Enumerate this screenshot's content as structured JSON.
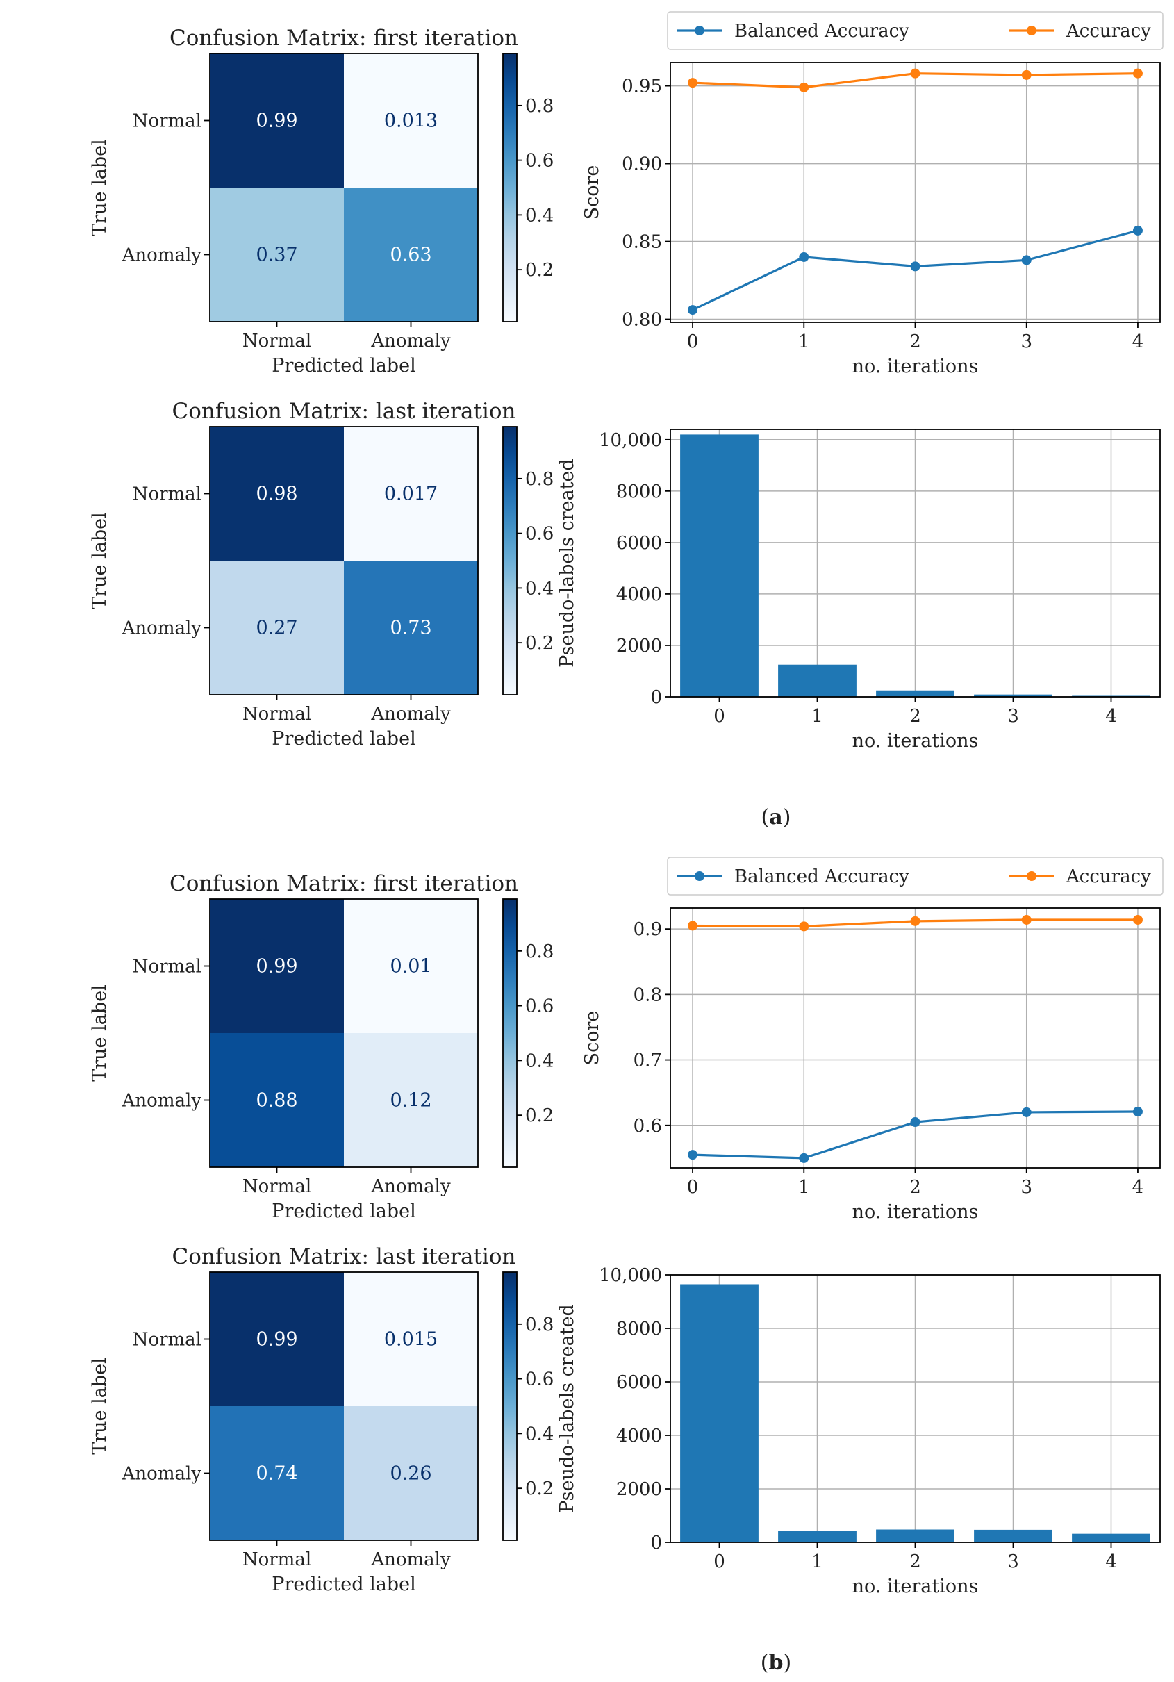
{
  "panels": [
    {
      "caption_letter": "a",
      "confusion_matrices": [
        {
          "title": "Confusion Matrix: first iteration",
          "values": [
            [
              0.99,
              0.013
            ],
            [
              0.37,
              0.63
            ]
          ],
          "labels": [
            [
              "0.99",
              "0.013"
            ],
            [
              "0.37",
              "0.63"
            ]
          ]
        },
        {
          "title": "Confusion Matrix: last iteration",
          "values": [
            [
              0.98,
              0.017
            ],
            [
              0.27,
              0.73
            ]
          ],
          "labels": [
            [
              "0.98",
              "0.017"
            ],
            [
              "0.27",
              "0.73"
            ]
          ]
        }
      ],
      "score_chart": {
        "ylim": [
          0.798,
          0.965
        ],
        "yticks": [
          0.8,
          0.85,
          0.9,
          0.95
        ],
        "ytick_labels": [
          "0.80",
          "0.85",
          "0.90",
          "0.95"
        ]
      },
      "pseudo_chart": {
        "ylim": [
          0,
          10400
        ],
        "yticks": [
          0,
          2000,
          4000,
          6000,
          8000,
          10000
        ],
        "ytick_labels": [
          "0",
          "2000",
          "4000",
          "6000",
          "8000",
          "10,000"
        ]
      }
    },
    {
      "caption_letter": "b",
      "confusion_matrices": [
        {
          "title": "Confusion Matrix: first iteration",
          "values": [
            [
              0.99,
              0.01
            ],
            [
              0.88,
              0.12
            ]
          ],
          "labels": [
            [
              "0.99",
              "0.01"
            ],
            [
              "0.88",
              "0.12"
            ]
          ]
        },
        {
          "title": "Confusion Matrix: last iteration",
          "values": [
            [
              0.99,
              0.015
            ],
            [
              0.74,
              0.26
            ]
          ],
          "labels": [
            [
              "0.99",
              "0.015"
            ],
            [
              "0.74",
              "0.26"
            ]
          ]
        }
      ],
      "score_chart": {
        "ylim": [
          0.535,
          0.932
        ],
        "yticks": [
          0.6,
          0.7,
          0.8,
          0.9
        ],
        "ytick_labels": [
          "0.6",
          "0.7",
          "0.8",
          "0.9"
        ]
      },
      "pseudo_chart": {
        "ylim": [
          0,
          10000
        ],
        "yticks": [
          0,
          2000,
          4000,
          6000,
          8000,
          10000
        ],
        "ytick_labels": [
          "0",
          "2000",
          "4000",
          "6000",
          "8000",
          "10,000"
        ]
      }
    }
  ],
  "common": {
    "class_labels": [
      "Normal",
      "Anomaly"
    ],
    "true_label": "True label",
    "predicted_label": "Predicted label",
    "colorbar_ticks": [
      0.2,
      0.4,
      0.6,
      0.8
    ],
    "colorbar_tick_labels": [
      "0.2",
      "0.4",
      "0.6",
      "0.8"
    ],
    "colorbar_range": [
      0.01,
      0.99
    ],
    "score_ylabel": "Score",
    "pseudo_ylabel": "Pseudo-labels created",
    "xlabel": "no. iterations",
    "iteration_ticks": [
      "0",
      "1",
      "2",
      "3",
      "4"
    ],
    "legend": {
      "balanced": "Balanced Accuracy",
      "accuracy": "Accuracy"
    }
  },
  "colors": {
    "balanced": "#1f77b4",
    "accuracy": "#ff7f0e",
    "bar": "#1f77b4"
  },
  "chart_data": [
    {
      "type": "heatmap",
      "title": "Confusion Matrix: first iteration",
      "rows": [
        "Normal",
        "Anomaly"
      ],
      "columns": [
        "Normal",
        "Anomaly"
      ],
      "values": [
        [
          0.99,
          0.013
        ],
        [
          0.37,
          0.63
        ]
      ],
      "xlabel": "Predicted label",
      "ylabel": "True label",
      "colormap": "Blues"
    },
    {
      "type": "line",
      "x": [
        0,
        1,
        2,
        3,
        4
      ],
      "series": [
        {
          "name": "Balanced Accuracy",
          "values": [
            0.806,
            0.84,
            0.834,
            0.838,
            0.857
          ]
        },
        {
          "name": "Accuracy",
          "values": [
            0.952,
            0.949,
            0.958,
            0.957,
            0.958
          ]
        }
      ],
      "xlabel": "no. iterations",
      "ylabel": "Score",
      "ylim": [
        0.798,
        0.965
      ],
      "grid": true,
      "legend": "top"
    },
    {
      "type": "heatmap",
      "title": "Confusion Matrix: last iteration",
      "rows": [
        "Normal",
        "Anomaly"
      ],
      "columns": [
        "Normal",
        "Anomaly"
      ],
      "values": [
        [
          0.98,
          0.017
        ],
        [
          0.27,
          0.73
        ]
      ],
      "xlabel": "Predicted label",
      "ylabel": "True label",
      "colormap": "Blues"
    },
    {
      "type": "bar",
      "categories": [
        "0",
        "1",
        "2",
        "3",
        "4"
      ],
      "values": [
        10200,
        1250,
        250,
        90,
        40
      ],
      "xlabel": "no. iterations",
      "ylabel": "Pseudo-labels created",
      "ylim": [
        0,
        10400
      ],
      "grid": true
    },
    {
      "type": "heatmap",
      "title": "Confusion Matrix: first iteration",
      "rows": [
        "Normal",
        "Anomaly"
      ],
      "columns": [
        "Normal",
        "Anomaly"
      ],
      "values": [
        [
          0.99,
          0.01
        ],
        [
          0.88,
          0.12
        ]
      ],
      "xlabel": "Predicted label",
      "ylabel": "True label",
      "colormap": "Blues"
    },
    {
      "type": "line",
      "x": [
        0,
        1,
        2,
        3,
        4
      ],
      "series": [
        {
          "name": "Balanced Accuracy",
          "values": [
            0.555,
            0.55,
            0.605,
            0.62,
            0.621
          ]
        },
        {
          "name": "Accuracy",
          "values": [
            0.905,
            0.904,
            0.912,
            0.914,
            0.914
          ]
        }
      ],
      "xlabel": "no. iterations",
      "ylabel": "Score",
      "ylim": [
        0.535,
        0.932
      ],
      "grid": true,
      "legend": "top"
    },
    {
      "type": "heatmap",
      "title": "Confusion Matrix: last iteration",
      "rows": [
        "Normal",
        "Anomaly"
      ],
      "columns": [
        "Normal",
        "Anomaly"
      ],
      "values": [
        [
          0.99,
          0.015
        ],
        [
          0.74,
          0.26
        ]
      ],
      "xlabel": "Predicted label",
      "ylabel": "True label",
      "colormap": "Blues"
    },
    {
      "type": "bar",
      "categories": [
        "0",
        "1",
        "2",
        "3",
        "4"
      ],
      "values": [
        9650,
        420,
        480,
        470,
        320
      ],
      "xlabel": "no. iterations",
      "ylabel": "Pseudo-labels created",
      "ylim": [
        0,
        10000
      ],
      "grid": true
    }
  ]
}
